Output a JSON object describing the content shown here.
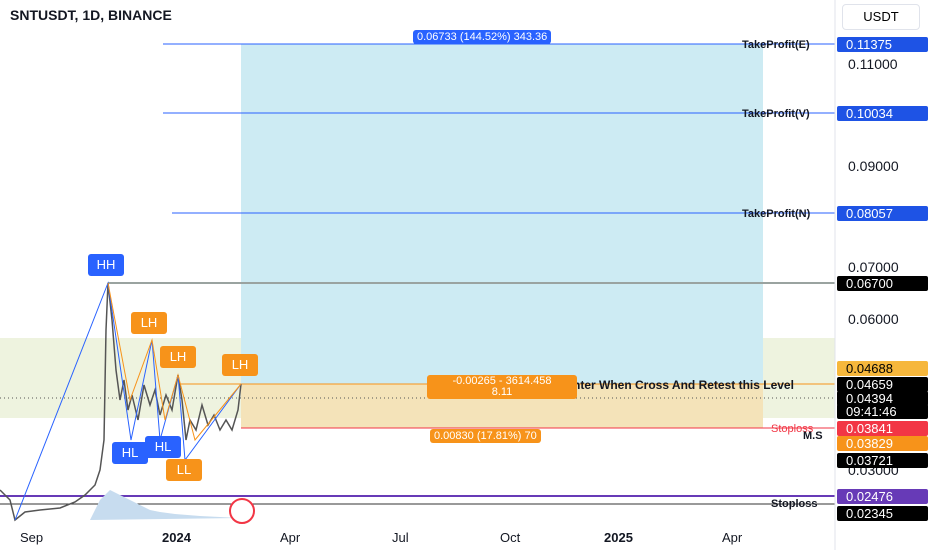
{
  "header": {
    "symbol": "SNTUSDT, 1D, BINANCE",
    "currency": "USDT"
  },
  "price_axis": [
    "0.11000",
    "0.09000",
    "0.07000",
    "0.06000",
    "0.03000"
  ],
  "price_tags": [
    {
      "label": "0.11375",
      "color": "#1e53e5"
    },
    {
      "label": "0.10034",
      "color": "#1e53e5"
    },
    {
      "label": "0.08057",
      "color": "#1e53e5"
    },
    {
      "label": "0.06700",
      "color": "#000000"
    },
    {
      "label": "0.04688",
      "color": "#f6b73c"
    },
    {
      "label": "0.04659",
      "color": "#000000"
    },
    {
      "label": "0.04394",
      "color": "#000000"
    },
    {
      "label": "09:41:46",
      "color": "#000000"
    },
    {
      "label": "0.03841",
      "color": "#f23645"
    },
    {
      "label": "0.03829",
      "color": "#f7931a"
    },
    {
      "label": "0.03721",
      "color": "#000000"
    },
    {
      "label": "0.02476",
      "color": "#673ab7"
    },
    {
      "label": "0.02345",
      "color": "#000000"
    }
  ],
  "level_labels": [
    "TakeProfit(E)",
    "TakeProfit(V)",
    "TakeProfit(N)",
    "Enter When Cross And Retest this Level",
    "Stoploss",
    "M.S",
    "Stoploss"
  ],
  "position": {
    "target": "0.06733 (144.52%) 343.36",
    "open_line1": "-0.00265 - 3614.458",
    "open_line2": "8.11",
    "stop": "0.00830 (17.81%) 70"
  },
  "pivots": [
    "HH",
    "LH",
    "LH",
    "LH",
    "HL",
    "HL",
    "LL"
  ],
  "time_axis": [
    "Sep",
    "2024",
    "Apr",
    "Jul",
    "Oct",
    "2025",
    "Apr"
  ]
}
